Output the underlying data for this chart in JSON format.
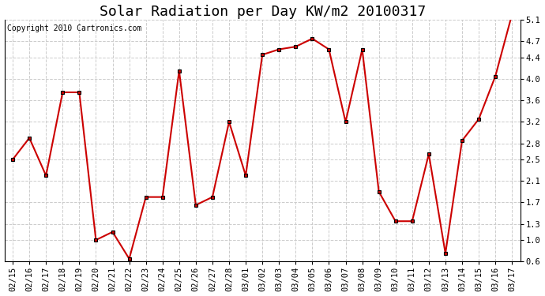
{
  "title": "Solar Radiation per Day KW/m2 20100317",
  "copyright": "Copyright 2010 Cartronics.com",
  "x_labels": [
    "02/15",
    "02/16",
    "02/17",
    "02/18",
    "02/19",
    "02/20",
    "02/21",
    "02/22",
    "02/23",
    "02/24",
    "02/25",
    "02/26",
    "02/27",
    "02/28",
    "03/01",
    "03/02",
    "03/03",
    "03/04",
    "03/05",
    "03/06",
    "03/07",
    "03/08",
    "03/09",
    "03/10",
    "03/11",
    "03/12",
    "03/13",
    "03/14",
    "03/15",
    "03/16",
    "03/17"
  ],
  "y_values": [
    2.5,
    2.9,
    2.2,
    3.75,
    3.75,
    1.0,
    1.15,
    0.65,
    1.8,
    1.8,
    4.15,
    1.65,
    1.8,
    3.2,
    2.2,
    4.45,
    4.55,
    4.6,
    4.75,
    4.55,
    3.2,
    4.55,
    1.9,
    1.35,
    1.35,
    2.6,
    0.75,
    2.85,
    3.25,
    4.05,
    5.2
  ],
  "line_color": "#cc0000",
  "marker": "s",
  "marker_size": 3.0,
  "marker_color": "#000000",
  "ylim": [
    0.6,
    5.1
  ],
  "yticks": [
    0.6,
    1.0,
    1.3,
    1.7,
    2.1,
    2.5,
    2.8,
    3.2,
    3.6,
    4.0,
    4.4,
    4.7,
    5.1
  ],
  "grid_color": "#cccccc",
  "bg_color": "#ffffff",
  "title_fontsize": 13,
  "copyright_fontsize": 7,
  "tick_fontsize": 7.5,
  "figsize": [
    6.9,
    3.75
  ],
  "dpi": 100
}
